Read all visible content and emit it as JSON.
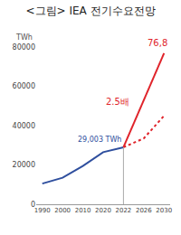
{
  "chart_data": {
    "type": "line",
    "title": "<그림> IEA 전기수요전망",
    "y_label": "TWh",
    "categories": [
      "1990",
      "2000",
      "2010",
      "2020",
      "2022",
      "2026",
      "2030"
    ],
    "series": [
      {
        "color": "#2f4f9e",
        "line_style": "solid",
        "values": [
          10500,
          13500,
          19500,
          26500,
          29003,
          null,
          null
        ]
      },
      {
        "color": "#e0242b",
        "line_style": "dotted",
        "values": [
          null,
          null,
          null,
          null,
          29003,
          33500,
          45000
        ]
      },
      {
        "color": "#e0242b",
        "line_style": "solid",
        "values": [
          null,
          null,
          null,
          null,
          29003,
          null,
          76800
        ]
      }
    ],
    "ylim": [
      0,
      80000
    ],
    "yticks": [
      0,
      20000,
      40000,
      60000,
      80000
    ],
    "grid": false,
    "annotations": [
      {
        "text": "29,003 TWh",
        "category": "2022",
        "y": 29003,
        "color": "#2f4f9e"
      },
      {
        "text": "2.5배",
        "category": "2022",
        "y": 52000,
        "color": "#e0242b"
      },
      {
        "text": "76,8",
        "category": "2030",
        "y": 76800,
        "color": "#e0242b"
      }
    ]
  }
}
